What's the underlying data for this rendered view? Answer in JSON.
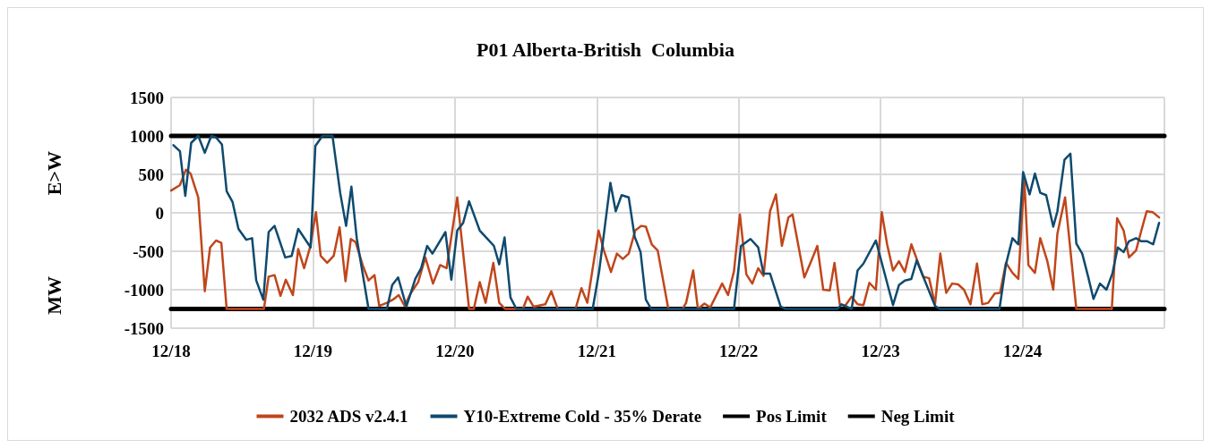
{
  "chart_data": {
    "type": "line",
    "title": "P01 Alberta-British  Columbia",
    "ylabel": "MW E>W",
    "xlim": [
      "--12-18",
      "--12-25"
    ],
    "xticks": [
      {
        "value": "--12-18",
        "label": "12/18"
      },
      {
        "value": "--12-19",
        "label": "12/19"
      },
      {
        "value": "--12-20",
        "label": "12/20"
      },
      {
        "value": "--12-21",
        "label": "12/21"
      },
      {
        "value": "--12-22",
        "label": "12/22"
      },
      {
        "value": "--12-23",
        "label": "12/23"
      },
      {
        "value": "--12-24",
        "label": "12/24"
      }
    ],
    "ylim": [
      -1500,
      1500
    ],
    "yticks": [
      -1500,
      -1000,
      -500,
      0,
      500,
      1000,
      1500
    ],
    "grid": true,
    "legend": "bottom",
    "marker": "none",
    "line_style": "solid",
    "series": [
      {
        "name": "2032 ADS v2.4.1",
        "color": "#c0461b",
        "x": [
          "--12-18T00:00",
          "--12-18T01:30",
          "--12-18T02:30",
          "--12-18T03:18",
          "--12-18T04:36",
          "--12-18T05:42",
          "--12-18T06:36",
          "--12-18T07:36",
          "--12-18T08:30",
          "--12-18T09:24",
          "--12-18T15:42",
          "--12-18T16:30",
          "--12-18T17:30",
          "--12-18T18:30",
          "--12-18T19:24",
          "--12-18T20:36",
          "--12-18T21:30",
          "--12-18T22:30",
          "--12-18T23:30",
          "--12-19T00:30",
          "--12-19T01:18",
          "--12-19T02:24",
          "--12-19T03:30",
          "--12-19T04:30",
          "--12-19T05:30",
          "--12-19T06:24",
          "--12-19T07:12",
          "--12-19T08:24",
          "--12-19T09:24",
          "--12-19T10:24",
          "--12-19T11:12",
          "--12-19T12:30",
          "--12-19T13:30",
          "--12-19T14:30",
          "--12-19T15:30",
          "--12-19T16:30",
          "--12-19T17:48",
          "--12-19T19:00",
          "--12-19T20:18",
          "--12-19T21:30",
          "--12-19T22:36",
          "--12-20T00:24",
          "--12-20T02:24",
          "--12-20T03:12",
          "--12-20T04:12",
          "--12-20T05:12",
          "--12-20T06:30",
          "--12-20T07:30",
          "--12-20T08:30",
          "--12-20T11:30",
          "--12-20T12:18",
          "--12-20T13:18",
          "--12-20T15:18",
          "--12-20T16:18",
          "--12-20T17:24",
          "--12-20T20:24",
          "--12-20T21:24",
          "--12-20T22:24",
          "--12-21T00:18",
          "--12-21T01:12",
          "--12-21T02:24",
          "--12-21T03:24",
          "--12-21T04:24",
          "--12-21T05:24",
          "--12-21T06:30",
          "--12-21T07:30",
          "--12-21T08:18",
          "--12-21T09:18",
          "--12-21T10:18",
          "--12-21T12:06",
          "--12-21T14:30",
          "--12-21T15:06",
          "--12-21T16:18",
          "--12-21T17:06",
          "--12-21T18:12",
          "--12-21T19:12",
          "--12-21T21:12",
          "--12-21T22:12",
          "--12-21T23:12",
          "--12-22T00:12",
          "--12-22T01:18",
          "--12-22T02:18",
          "--12-22T03:18",
          "--12-22T04:12",
          "--12-22T05:18",
          "--12-22T06:18",
          "--12-22T07:18",
          "--12-22T08:24",
          "--12-22T09:06",
          "--12-22T11:06",
          "--12-22T12:12",
          "--12-22T13:18",
          "--12-22T14:18",
          "--12-22T15:24",
          "--12-22T16:12",
          "--12-22T17:06",
          "--12-22T18:00",
          "--12-22T19:06",
          "--12-22T20:06",
          "--12-22T21:06",
          "--12-22T22:06",
          "--12-22T23:12",
          "--12-23T00:12",
          "--12-23T01:06",
          "--12-23T02:06",
          "--12-23T03:06",
          "--12-23T04:06",
          "--12-23T05:12",
          "--12-23T06:12",
          "--12-23T07:12",
          "--12-23T08:12",
          "--12-23T09:12",
          "--12-23T10:06",
          "--12-23T11:06",
          "--12-23T12:06",
          "--12-23T13:06",
          "--12-23T14:06",
          "--12-23T15:12",
          "--12-23T16:18",
          "--12-23T17:12",
          "--12-23T18:12",
          "--12-23T19:18",
          "--12-23T20:12",
          "--12-23T21:12",
          "--12-23T22:18",
          "--12-23T23:18",
          "--12-24T00:18",
          "--12-24T01:00",
          "--12-24T02:06",
          "--12-24T03:00",
          "--12-24T04:12",
          "--12-24T05:12",
          "--12-24T05:54",
          "--12-24T07:12",
          "--12-24T09:06",
          "--12-24T15:06",
          "--12-24T16:00",
          "--12-24T17:06",
          "--12-24T18:00",
          "--12-24T19:12",
          "--12-24T20:06",
          "--12-24T21:00",
          "--12-24T22:00",
          "--12-24T23:06"
        ],
        "values": [
          290,
          360,
          560,
          510,
          200,
          -1020,
          -450,
          -360,
          -390,
          -1250,
          -1250,
          -830,
          -810,
          -1080,
          -870,
          -1070,
          -470,
          -720,
          -450,
          10,
          -560,
          -650,
          -560,
          -190,
          -890,
          -340,
          -380,
          -680,
          -880,
          -810,
          -1210,
          -1170,
          -1130,
          -1070,
          -1210,
          -1050,
          -900,
          -580,
          -920,
          -680,
          -720,
          200,
          -1250,
          -1250,
          -900,
          -1170,
          -650,
          -1170,
          -1250,
          -1250,
          -1090,
          -1220,
          -1190,
          -1020,
          -1250,
          -1250,
          -980,
          -1170,
          -230,
          -490,
          -770,
          -530,
          -600,
          -530,
          -230,
          -170,
          -180,
          -410,
          -490,
          -1250,
          -1250,
          -1170,
          -750,
          -1250,
          -1180,
          -1230,
          -920,
          -1070,
          -760,
          -20,
          -800,
          -920,
          -720,
          -820,
          20,
          240,
          -430,
          -60,
          -20,
          -840,
          -640,
          -430,
          -1000,
          -1010,
          -650,
          -1190,
          -1210,
          -1090,
          -1190,
          -1200,
          -910,
          -1000,
          10,
          -410,
          -750,
          -630,
          -770,
          -410,
          -620,
          -830,
          -850,
          -1190,
          -530,
          -1040,
          -920,
          -930,
          -1000,
          -1190,
          -660,
          -1190,
          -1170,
          -1050,
          -1040,
          -650,
          -780,
          -860,
          450,
          -680,
          -780,
          -330,
          -630,
          -1000,
          -270,
          200,
          -1250,
          -1250,
          -70,
          -230,
          -580,
          -490,
          -230,
          20,
          10,
          -60
        ]
      },
      {
        "name": "Y10-Extreme Cold - 35% Derate",
        "color": "#0e4a6e",
        "x": [
          "--12-18T00:24",
          "--12-18T01:30",
          "--12-18T02:24",
          "--12-18T03:24",
          "--12-18T04:36",
          "--12-18T05:42",
          "--12-18T06:48",
          "--12-18T07:36",
          "--12-18T08:36",
          "--12-18T09:24",
          "--12-18T10:24",
          "--12-18T11:24",
          "--12-18T12:42",
          "--12-18T13:42",
          "--12-18T14:24",
          "--12-18T15:36",
          "--12-18T16:30",
          "--12-18T17:30",
          "--12-18T19:18",
          "--12-18T20:24",
          "--12-18T21:30",
          "--12-18T23:36",
          "--12-19T00:24",
          "--12-19T01:36",
          "--12-19T03:18",
          "--12-19T04:36",
          "--12-19T05:36",
          "--12-19T06:30",
          "--12-19T07:24",
          "--12-19T09:24",
          "--12-19T12:30",
          "--12-19T13:24",
          "--12-19T14:24",
          "--12-19T15:48",
          "--12-19T17:18",
          "--12-19T18:18",
          "--12-19T19:18",
          "--12-19T20:12",
          "--12-19T22:24",
          "--12-19T23:24",
          "--12-20T00:24",
          "--12-20T01:24",
          "--12-20T02:24",
          "--12-20T04:12",
          "--12-20T05:24",
          "--12-20T06:36",
          "--12-20T07:30",
          "--12-20T08:24",
          "--12-20T09:24",
          "--12-20T10:24",
          "--12-20T23:18",
          "--12-21T00:24",
          "--12-21T02:18",
          "--12-21T03:12",
          "--12-21T04:12",
          "--12-21T05:24",
          "--12-21T06:24",
          "--12-21T07:24",
          "--12-21T08:18",
          "--12-21T09:12",
          "--12-21T23:12",
          "--12-22T00:24",
          "--12-22T02:00",
          "--12-22T03:18",
          "--12-22T04:12",
          "--12-22T05:18",
          "--12-22T07:06",
          "--12-22T08:00",
          "--12-22T16:42",
          "--12-22T17:24",
          "--12-22T19:06",
          "--12-22T20:06",
          "--12-22T21:06",
          "--12-22T23:12",
          "--12-23T02:06",
          "--12-23T03:06",
          "--12-23T04:06",
          "--12-23T05:12",
          "--12-23T06:06",
          "--12-23T09:12",
          "--12-23T10:00",
          "--12-23T20:06",
          "--12-23T21:12",
          "--12-23T22:18",
          "--12-23T23:18",
          "--12-24T00:06",
          "--12-24T01:12",
          "--12-24T02:06",
          "--12-24T03:00",
          "--12-24T04:00",
          "--12-24T05:12",
          "--12-24T05:54",
          "--12-24T07:06",
          "--12-24T08:06",
          "--12-24T09:06",
          "--12-24T10:06",
          "--12-24T11:06",
          "--12-24T12:00",
          "--12-24T13:06",
          "--12-24T14:12",
          "--12-24T15:12",
          "--12-24T16:06",
          "--12-24T17:06",
          "--12-24T18:00",
          "--12-24T19:12",
          "--12-24T20:06",
          "--12-24T21:06",
          "--12-24T22:06",
          "--12-24T23:06"
        ],
        "values": [
          880,
          800,
          220,
          910,
          1000,
          780,
          1000,
          980,
          890,
          280,
          140,
          -210,
          -350,
          -330,
          -880,
          -1130,
          -250,
          -170,
          -580,
          -560,
          -210,
          -450,
          870,
          1000,
          1000,
          260,
          -170,
          340,
          -330,
          -1250,
          -1250,
          -940,
          -840,
          -1220,
          -860,
          -720,
          -430,
          -530,
          -250,
          -870,
          -230,
          -130,
          150,
          -230,
          -330,
          -430,
          -670,
          -320,
          -1100,
          -1250,
          -1250,
          -760,
          390,
          20,
          230,
          200,
          -310,
          -510,
          -1130,
          -1250,
          -1250,
          -430,
          -340,
          -450,
          -790,
          -790,
          -1220,
          -1250,
          -1250,
          -1190,
          -1250,
          -750,
          -660,
          -360,
          -1200,
          -940,
          -880,
          -860,
          -620,
          -1210,
          -1250,
          -1250,
          -670,
          -330,
          -410,
          530,
          240,
          510,
          260,
          230,
          -180,
          20,
          690,
          770,
          -400,
          -530,
          -830,
          -1120,
          -920,
          -1000,
          -790,
          -450,
          -510,
          -370,
          -330,
          -370,
          -370,
          -410,
          -130
        ]
      },
      {
        "name": "Pos Limit",
        "color": "#000000",
        "x": [
          "--12-18T00:00",
          "--12-25T00:00"
        ],
        "values": [
          1000,
          1000
        ]
      },
      {
        "name": "Neg Limit",
        "color": "#000000",
        "x": [
          "--12-18T00:00",
          "--12-25T00:00"
        ],
        "values": [
          -1250,
          -1250
        ]
      }
    ]
  }
}
